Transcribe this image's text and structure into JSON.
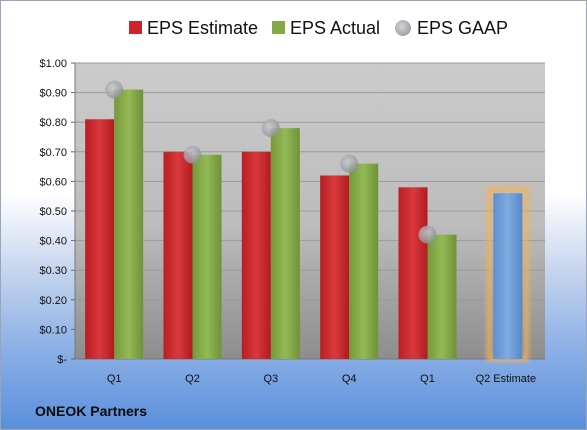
{
  "company_label": "ONEOK Partners",
  "chart_data": {
    "type": "bar",
    "title": "",
    "xlabel": "",
    "ylabel": "",
    "categories": [
      "Q1",
      "Q2",
      "Q3",
      "Q4",
      "Q1",
      "Q2 Estimate"
    ],
    "y_tick_labels": [
      "$-",
      "$0.10",
      "$0.20",
      "$0.30",
      "$0.40",
      "$0.50",
      "$0.60",
      "$0.70",
      "$0.80",
      "$0.90",
      "$1.00"
    ],
    "ylim": [
      0,
      1.0
    ],
    "grid": true,
    "legend_position": "top",
    "series": [
      {
        "name": "EPS Estimate",
        "kind": "bar",
        "color": "#c8262b",
        "values": [
          0.81,
          0.7,
          0.7,
          0.62,
          0.58,
          null
        ]
      },
      {
        "name": "EPS Actual",
        "kind": "bar",
        "color": "#84a945",
        "values": [
          0.91,
          0.69,
          0.78,
          0.66,
          0.42,
          null
        ]
      },
      {
        "name": "EPS GAAP",
        "kind": "point",
        "color": "#a9adb3",
        "values": [
          0.91,
          0.69,
          0.78,
          0.66,
          0.42,
          null
        ]
      }
    ],
    "forecast": {
      "category_index": 5,
      "value": 0.56,
      "color": "#6f9fd8",
      "glow_color": "#f3b25a"
    }
  }
}
